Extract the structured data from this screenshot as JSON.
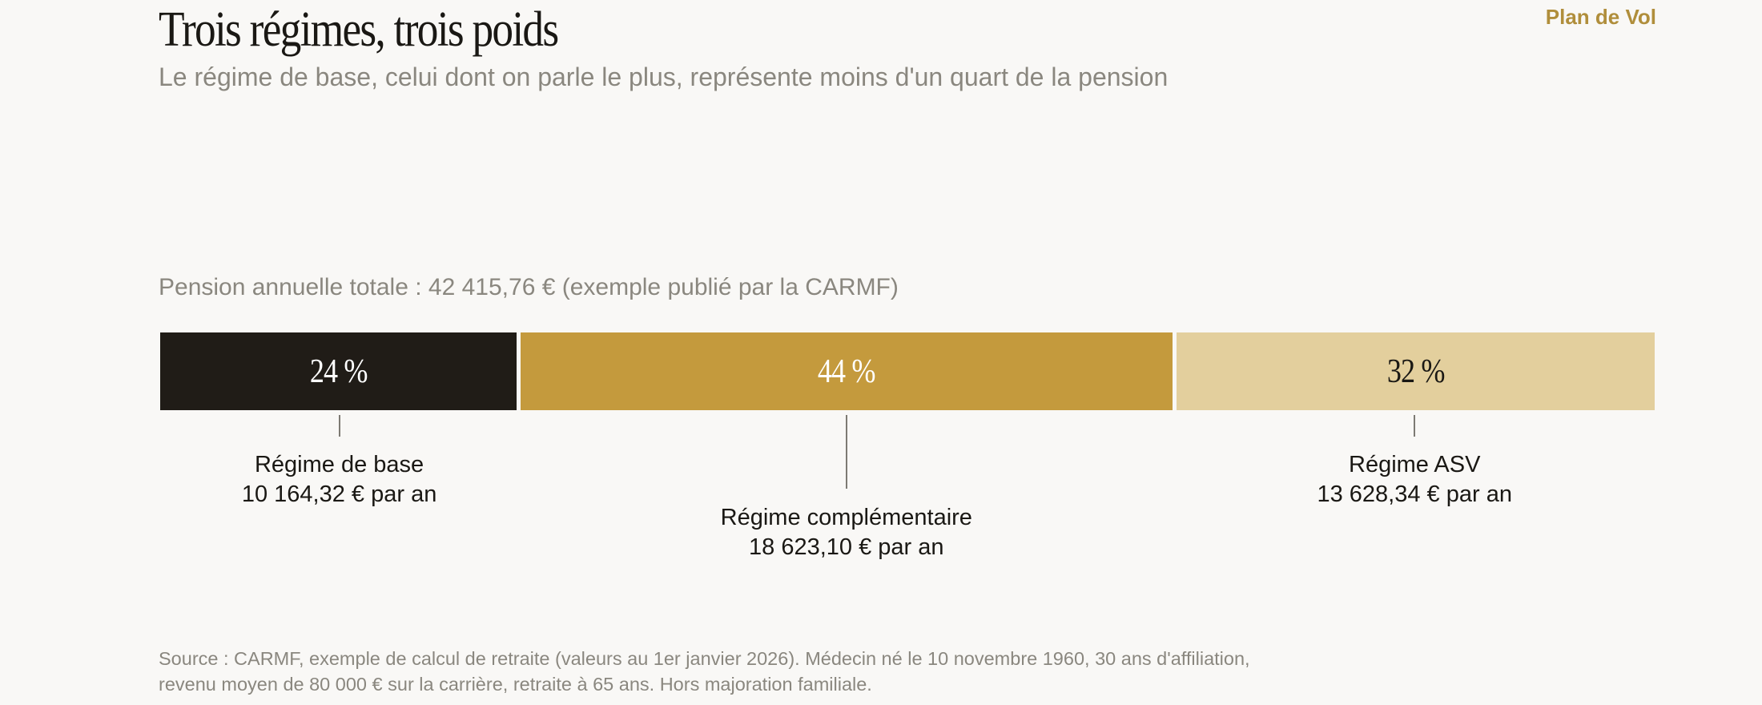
{
  "header": {
    "title": "Trois régimes, trois poids",
    "subtitle": "Le régime de base, celui dont on parle le plus, représente moins d'un quart de la pension",
    "brand": "Plan de Vol"
  },
  "total_label": "Pension annuelle totale : 42 415,76 € (exemple publié par la CARMF)",
  "source": "Source : CARMF, exemple de calcul de retraite (valeurs au 1er janvier 2026). Médecin né le 10 novembre 1960, 30 ans d'affiliation, revenu moyen de 80 000 € sur la carrière, retraite à 65 ans. Hors majoration familiale.",
  "colors": {
    "base": "#201c17",
    "complementaire": "#c49a3d",
    "asv": "#e3cf9d",
    "background": "#f9f8f6",
    "accent": "#b08e3b"
  },
  "chart_data": {
    "type": "bar",
    "orientation": "horizontal-stacked-100",
    "total": 42415.76,
    "series": [
      {
        "name": "Régime de base",
        "value": 10164.32,
        "percent": 24,
        "percent_label": "24 %",
        "value_label": "10 164,32 € par an",
        "color": "#201c17",
        "text_color": "#ffffff"
      },
      {
        "name": "Régime complémentaire",
        "value": 18623.1,
        "percent": 44,
        "percent_label": "44 %",
        "value_label": "18 623,10 € par an",
        "color": "#c49a3d",
        "text_color": "#ffffff"
      },
      {
        "name": "Régime ASV",
        "value": 13628.34,
        "percent": 32,
        "percent_label": "32 %",
        "value_label": "13 628,34 € par an",
        "color": "#e3cf9d",
        "text_color": "#1a1814"
      }
    ],
    "grid": false,
    "legend": "none"
  }
}
